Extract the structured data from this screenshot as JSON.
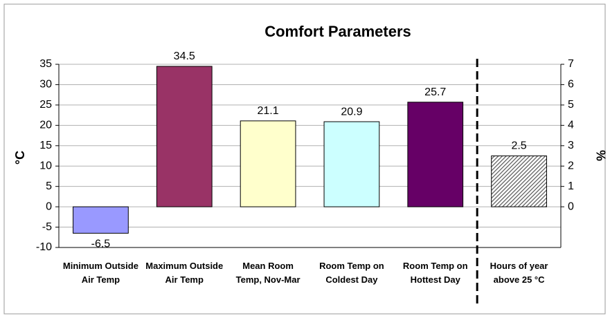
{
  "chart_data": {
    "type": "bar",
    "title": "Comfort Parameters",
    "y_label": "°C",
    "y2_label": "%",
    "categories": [
      "Minimum Outside Air Temp",
      "Maximum Outside Air Temp",
      "Mean Room Temp, Nov-Mar",
      "Room Temp on Coldest Day",
      "Room Temp on Hottest Day",
      "Hours of year above 25 °C"
    ],
    "series": [
      {
        "axis": "y",
        "colors": [
          "#9999ff",
          "#993366",
          "#ffffcc",
          "#ccffff",
          "#660066",
          null
        ],
        "values": [
          -6.5,
          34.5,
          21.1,
          20.9,
          25.7,
          null
        ]
      },
      {
        "axis": "y2",
        "color": "#888888",
        "pattern": "hatch",
        "values": [
          null,
          null,
          null,
          null,
          null,
          2.5
        ]
      }
    ],
    "ylim": [
      -10,
      35
    ],
    "yticks": [
      -10,
      -5,
      0,
      5,
      10,
      15,
      20,
      25,
      30,
      35
    ],
    "y2lim": [
      -2,
      7
    ],
    "y2ticks": [
      0,
      1,
      2,
      3,
      4,
      5,
      6,
      7
    ],
    "grid": true
  }
}
